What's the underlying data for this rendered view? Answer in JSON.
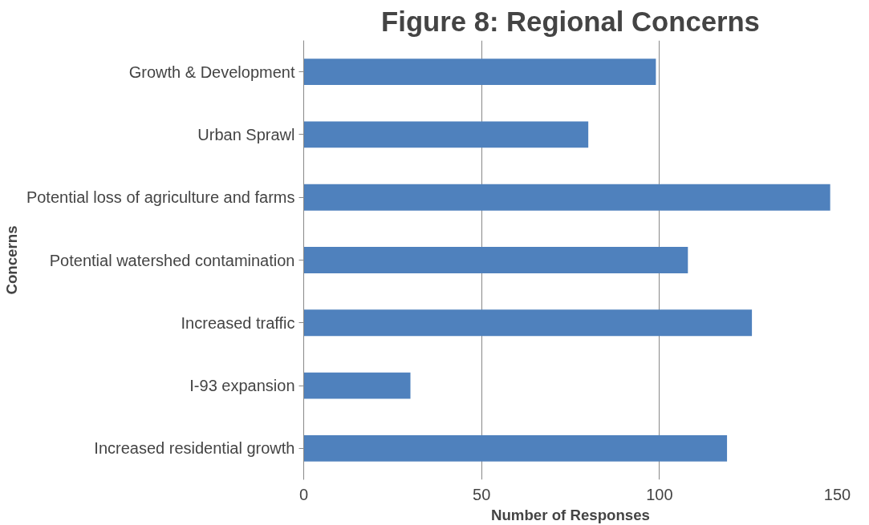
{
  "chart_data": {
    "type": "bar",
    "orientation": "horizontal",
    "title": "Figure 8: Regional Concerns",
    "xlabel": "Number of Responses",
    "ylabel": "Concerns",
    "categories": [
      "Growth & Development",
      "Urban Sprawl",
      "Potential loss of agriculture and farms",
      "Potential watershed contamination",
      "Increased traffic",
      "I-93 expansion",
      "Increased residential growth"
    ],
    "values": [
      99,
      80,
      148,
      108,
      126,
      30,
      119
    ],
    "color": "#4f81bd",
    "xlim": [
      0,
      150
    ],
    "xticks": [
      0,
      50,
      100,
      150
    ],
    "grid": "x"
  }
}
